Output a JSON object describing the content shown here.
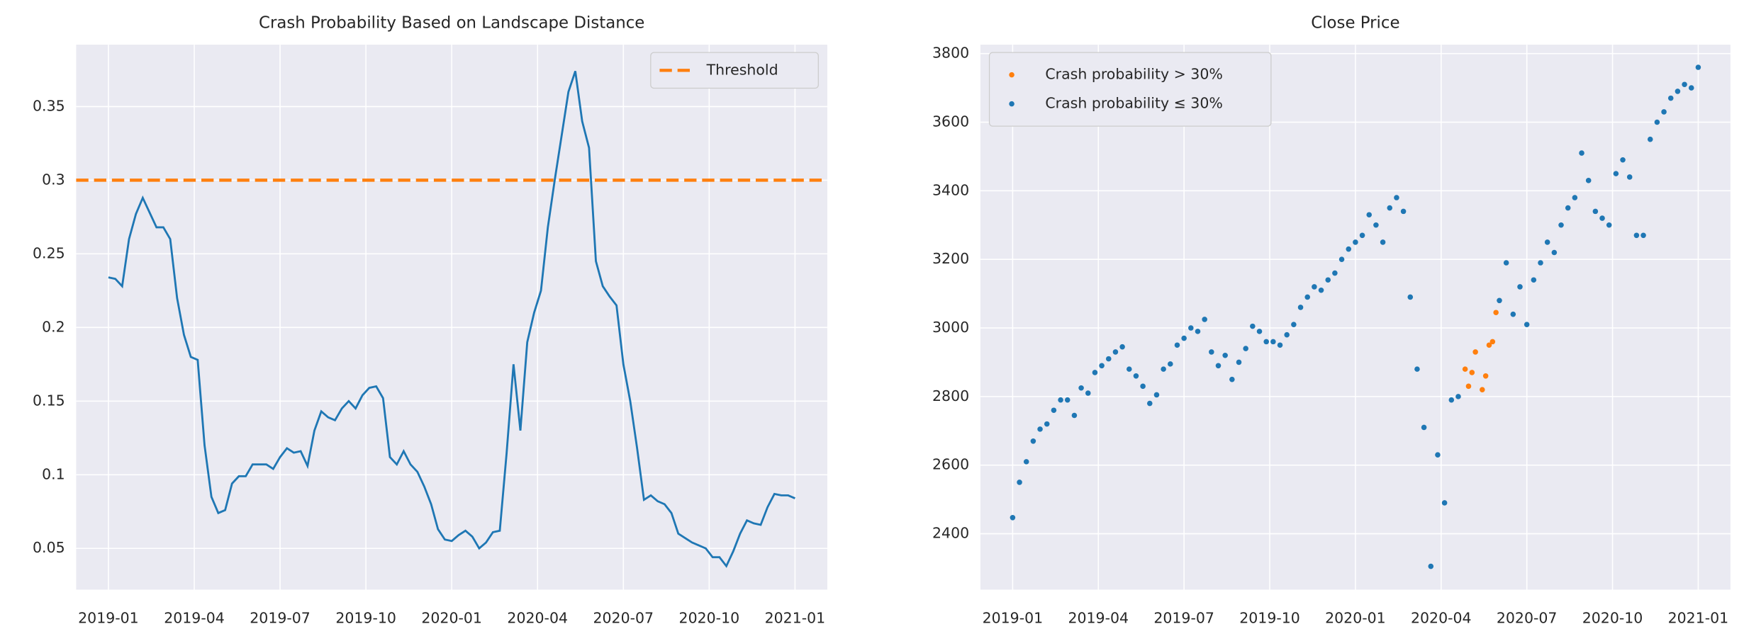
{
  "chart_data": [
    {
      "type": "line",
      "title": "Crash Probability Based on Landscape Distance",
      "xlim": [
        2018.906,
        2021.094
      ],
      "ylim": [
        0.022,
        0.392
      ],
      "xticks": [
        {
          "value": 2019.0,
          "label": "2019-01"
        },
        {
          "value": 2019.25,
          "label": "2019-04"
        },
        {
          "value": 2019.5,
          "label": "2019-07"
        },
        {
          "value": 2019.75,
          "label": "2019-10"
        },
        {
          "value": 2020.0,
          "label": "2020-01"
        },
        {
          "value": 2020.25,
          "label": "2020-04"
        },
        {
          "value": 2020.5,
          "label": "2020-07"
        },
        {
          "value": 2020.75,
          "label": "2020-10"
        },
        {
          "value": 2021.0,
          "label": "2021-01"
        }
      ],
      "yticks": [
        0.05,
        0.1,
        0.15,
        0.2,
        0.25,
        0.3,
        0.35
      ],
      "grid": true,
      "legend": "upper right",
      "threshold": {
        "name": "Threshold",
        "value": 0.3,
        "color": "#ff7f0e"
      },
      "series": [
        {
          "color": "#1f77b4",
          "x": [
            2019.0,
            2019.02,
            2019.04,
            2019.06,
            2019.08,
            2019.1,
            2019.12,
            2019.14,
            2019.16,
            2019.18,
            2019.2,
            2019.22,
            2019.24,
            2019.26,
            2019.28,
            2019.3,
            2019.32,
            2019.34,
            2019.36,
            2019.38,
            2019.4,
            2019.42,
            2019.44,
            2019.46,
            2019.48,
            2019.5,
            2019.52,
            2019.54,
            2019.56,
            2019.58,
            2019.6,
            2019.62,
            2019.64,
            2019.66,
            2019.68,
            2019.7,
            2019.72,
            2019.74,
            2019.76,
            2019.78,
            2019.8,
            2019.82,
            2019.84,
            2019.86,
            2019.88,
            2019.9,
            2019.92,
            2019.94,
            2019.96,
            2019.98,
            2020.0,
            2020.02,
            2020.04,
            2020.06,
            2020.08,
            2020.1,
            2020.12,
            2020.14,
            2020.16,
            2020.18,
            2020.2,
            2020.22,
            2020.24,
            2020.26,
            2020.28,
            2020.3,
            2020.32,
            2020.34,
            2020.36,
            2020.38,
            2020.4,
            2020.42,
            2020.44,
            2020.46,
            2020.48,
            2020.5,
            2020.52,
            2020.54,
            2020.56,
            2020.58,
            2020.6,
            2020.62,
            2020.64,
            2020.66,
            2020.68,
            2020.7,
            2020.72,
            2020.74,
            2020.76,
            2020.78,
            2020.8,
            2020.82,
            2020.84,
            2020.86,
            2020.88,
            2020.9,
            2020.92,
            2020.94,
            2020.96,
            2020.98,
            2021.0
          ],
          "values": [
            0.234,
            0.233,
            0.228,
            0.26,
            0.277,
            0.288,
            0.278,
            0.268,
            0.268,
            0.26,
            0.22,
            0.195,
            0.18,
            0.178,
            0.12,
            0.085,
            0.074,
            0.076,
            0.094,
            0.099,
            0.099,
            0.107,
            0.107,
            0.107,
            0.104,
            0.112,
            0.118,
            0.115,
            0.116,
            0.106,
            0.13,
            0.143,
            0.139,
            0.137,
            0.145,
            0.15,
            0.145,
            0.154,
            0.159,
            0.16,
            0.152,
            0.112,
            0.107,
            0.116,
            0.107,
            0.102,
            0.092,
            0.08,
            0.063,
            0.056,
            0.055,
            0.059,
            0.062,
            0.058,
            0.05,
            0.054,
            0.061,
            0.062,
            0.115,
            0.175,
            0.13,
            0.19,
            0.21,
            0.225,
            0.268,
            0.3,
            0.33,
            0.36,
            0.374,
            0.34,
            0.322,
            0.245,
            0.228,
            0.221,
            0.215,
            0.175,
            0.15,
            0.118,
            0.083,
            0.086,
            0.082,
            0.08,
            0.074,
            0.06,
            0.057,
            0.054,
            0.052,
            0.05,
            0.044,
            0.044,
            0.038,
            0.048,
            0.06,
            0.069,
            0.067,
            0.066,
            0.078,
            0.087,
            0.086,
            0.086,
            0.084
          ]
        }
      ]
    },
    {
      "type": "scatter",
      "title": "Close Price",
      "xlim": [
        2018.906,
        2021.094
      ],
      "ylim": [
        2237,
        3826
      ],
      "xticks": [
        {
          "value": 2019.0,
          "label": "2019-01"
        },
        {
          "value": 2019.25,
          "label": "2019-04"
        },
        {
          "value": 2019.5,
          "label": "2019-07"
        },
        {
          "value": 2019.75,
          "label": "2019-10"
        },
        {
          "value": 2020.0,
          "label": "2020-01"
        },
        {
          "value": 2020.25,
          "label": "2020-04"
        },
        {
          "value": 2020.5,
          "label": "2020-07"
        },
        {
          "value": 2020.75,
          "label": "2020-10"
        },
        {
          "value": 2021.0,
          "label": "2021-01"
        }
      ],
      "yticks": [
        2400,
        2600,
        2800,
        3000,
        3200,
        3400,
        3600,
        3800
      ],
      "grid": true,
      "legend": "upper left",
      "series": [
        {
          "name": "Crash probability > 30%",
          "color": "#ff7f0e",
          "x": [
            2020.32,
            2020.33,
            2020.34,
            2020.35,
            2020.37,
            2020.38,
            2020.39,
            2020.4,
            2020.41
          ],
          "values": [
            2880,
            2830,
            2870,
            2930,
            2820,
            2860,
            2950,
            2960,
            3045
          ]
        },
        {
          "name": "Crash probability ≤ 30%",
          "color": "#1f77b4",
          "x": [
            2019.0,
            2019.02,
            2019.04,
            2019.06,
            2019.08,
            2019.1,
            2019.12,
            2019.14,
            2019.16,
            2019.18,
            2019.2,
            2019.22,
            2019.24,
            2019.26,
            2019.28,
            2019.3,
            2019.32,
            2019.34,
            2019.36,
            2019.38,
            2019.4,
            2019.42,
            2019.44,
            2019.46,
            2019.48,
            2019.5,
            2019.52,
            2019.54,
            2019.56,
            2019.58,
            2019.6,
            2019.62,
            2019.64,
            2019.66,
            2019.68,
            2019.7,
            2019.72,
            2019.74,
            2019.76,
            2019.78,
            2019.8,
            2019.82,
            2019.84,
            2019.86,
            2019.88,
            2019.9,
            2019.92,
            2019.94,
            2019.96,
            2019.98,
            2020.0,
            2020.02,
            2020.04,
            2020.06,
            2020.08,
            2020.1,
            2020.12,
            2020.14,
            2020.16,
            2020.18,
            2020.2,
            2020.22,
            2020.24,
            2020.26,
            2020.28,
            2020.3,
            2020.42,
            2020.44,
            2020.46,
            2020.48,
            2020.5,
            2020.52,
            2020.54,
            2020.56,
            2020.58,
            2020.6,
            2020.62,
            2020.64,
            2020.66,
            2020.68,
            2020.7,
            2020.72,
            2020.74,
            2020.76,
            2020.78,
            2020.8,
            2020.82,
            2020.84,
            2020.86,
            2020.88,
            2020.9,
            2020.92,
            2020.94,
            2020.96,
            2020.98,
            2021.0
          ],
          "values": [
            2447,
            2550,
            2610,
            2670,
            2705,
            2720,
            2760,
            2790,
            2790,
            2745,
            2825,
            2810,
            2870,
            2890,
            2910,
            2930,
            2945,
            2880,
            2860,
            2830,
            2780,
            2805,
            2880,
            2895,
            2950,
            2970,
            3000,
            2990,
            3025,
            2930,
            2890,
            2920,
            2850,
            2900,
            2940,
            3005,
            2990,
            2960,
            2960,
            2950,
            2980,
            3010,
            3060,
            3090,
            3120,
            3110,
            3140,
            3160,
            3200,
            3230,
            3250,
            3270,
            3330,
            3300,
            3250,
            3350,
            3380,
            3340,
            3090,
            2880,
            2710,
            2305,
            2630,
            2490,
            2790,
            2800,
            3080,
            3190,
            3040,
            3120,
            3010,
            3140,
            3190,
            3250,
            3220,
            3300,
            3350,
            3380,
            3510,
            3430,
            3340,
            3320,
            3300,
            3450,
            3490,
            3440,
            3270,
            3270,
            3550,
            3600,
            3630,
            3670,
            3690,
            3710,
            3700,
            3760
          ]
        }
      ]
    }
  ]
}
